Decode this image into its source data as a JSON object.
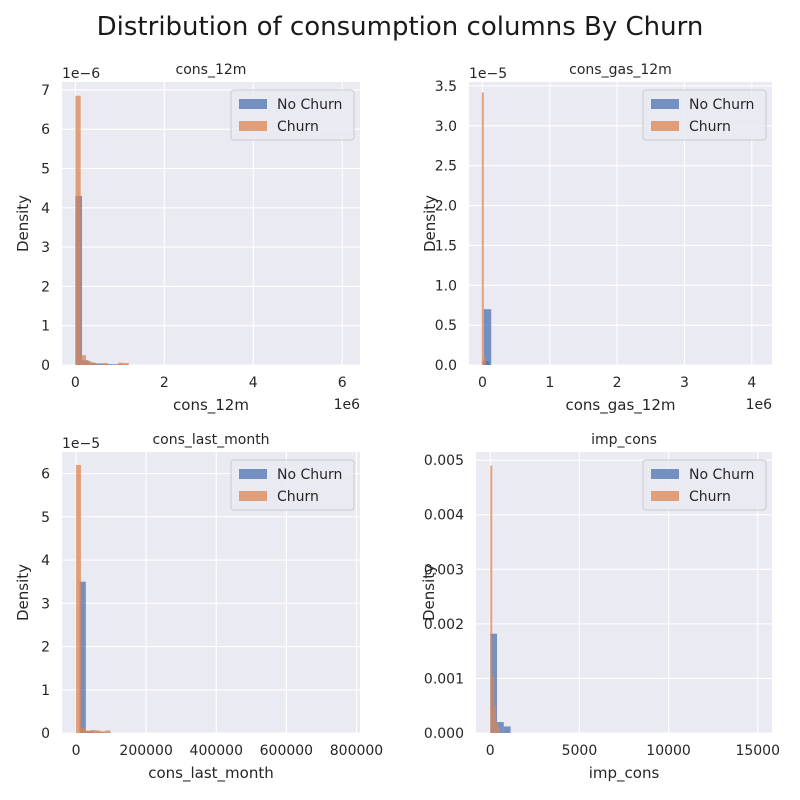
{
  "figure": {
    "title": "Distribution of consumption columns By Churn",
    "background": "#ffffff",
    "axes_face": "#eaeaf2",
    "grid_color": "#ffffff"
  },
  "colors": {
    "No Churn": "#4c72b0",
    "Churn": "#dd8452"
  },
  "chart_data": [
    {
      "type": "bar",
      "title": "cons_12m",
      "xlabel": "cons_12m",
      "ylabel": "Density",
      "x_offset_label": "1e6",
      "y_offset_label": "1e−6",
      "xlim": [
        -0.3,
        6.4
      ],
      "ylim": [
        0,
        7.2
      ],
      "xticks": [
        0,
        2,
        4,
        6
      ],
      "xtick_labels": [
        "0",
        "2",
        "4",
        "6"
      ],
      "yticks": [
        0,
        1,
        2,
        3,
        4,
        5,
        6,
        7
      ],
      "ytick_labels": [
        "0",
        "1",
        "2",
        "3",
        "4",
        "5",
        "6",
        "7"
      ],
      "grid": true,
      "legend": {
        "placement": "top-right",
        "entries": [
          "No Churn",
          "Churn"
        ]
      },
      "series": [
        {
          "name": "No Churn",
          "bins": [
            [
              0.0,
              0.15,
              4.3
            ],
            [
              0.15,
              0.3,
              0.12
            ],
            [
              0.3,
              0.45,
              0.06
            ],
            [
              0.45,
              0.6,
              0.04
            ],
            [
              0.6,
              0.75,
              0.03
            ],
            [
              0.75,
              0.9,
              0.02
            ],
            [
              0.9,
              1.05,
              0.02
            ],
            [
              1.05,
              1.2,
              0.01
            ]
          ]
        },
        {
          "name": "Churn",
          "bins": [
            [
              0.0,
              0.12,
              6.85
            ],
            [
              0.12,
              0.24,
              0.25
            ],
            [
              0.24,
              0.36,
              0.1
            ],
            [
              0.36,
              0.48,
              0.05
            ],
            [
              0.6,
              0.72,
              0.05
            ],
            [
              0.96,
              1.08,
              0.06
            ],
            [
              1.08,
              1.2,
              0.05
            ]
          ]
        }
      ]
    },
    {
      "type": "bar",
      "title": "cons_gas_12m",
      "xlabel": "cons_gas_12m",
      "ylabel": "Density",
      "x_offset_label": "1e6",
      "y_offset_label": "1e−5",
      "xlim": [
        -0.2,
        4.3
      ],
      "ylim": [
        0,
        3.55
      ],
      "xticks": [
        0,
        1,
        2,
        3,
        4
      ],
      "xtick_labels": [
        "0",
        "1",
        "2",
        "3",
        "4"
      ],
      "yticks": [
        0,
        0.5,
        1,
        1.5,
        2,
        2.5,
        3,
        3.5
      ],
      "ytick_labels": [
        "0.0",
        "0.5",
        "1.0",
        "1.5",
        "2.0",
        "2.5",
        "3.0",
        "3.5"
      ],
      "grid": true,
      "legend": {
        "placement": "top-right",
        "entries": [
          "No Churn",
          "Churn"
        ]
      },
      "series": [
        {
          "name": "No Churn",
          "bins": [
            [
              0.0,
              0.1,
              0.05
            ],
            [
              0.02,
              0.13,
              0.7
            ]
          ]
        },
        {
          "name": "Churn",
          "bins": [
            [
              -0.01,
              0.02,
              3.42
            ],
            [
              0.02,
              0.05,
              0.1
            ]
          ]
        }
      ]
    },
    {
      "type": "bar",
      "title": "cons_last_month",
      "xlabel": "cons_last_month",
      "ylabel": "Density",
      "x_offset_label": "",
      "y_offset_label": "1e−5",
      "xlim": [
        -40000,
        810000
      ],
      "ylim": [
        0,
        6.5
      ],
      "xticks": [
        0,
        200000,
        400000,
        600000,
        800000
      ],
      "xtick_labels": [
        "0",
        "200000",
        "400000",
        "600000",
        "800000"
      ],
      "yticks": [
        0,
        1,
        2,
        3,
        4,
        5,
        6
      ],
      "ytick_labels": [
        "0",
        "1",
        "2",
        "3",
        "4",
        "5",
        "6"
      ],
      "grid": true,
      "legend": {
        "placement": "top-right",
        "entries": [
          "No Churn",
          "Churn"
        ]
      },
      "series": [
        {
          "name": "No Churn",
          "bins": [
            [
              10000,
              28000,
              3.5
            ],
            [
              28000,
              46000,
              0.05
            ],
            [
              46000,
              64000,
              0.03
            ],
            [
              64000,
              82000,
              0.02
            ],
            [
              82000,
              100000,
              0.01
            ]
          ]
        },
        {
          "name": "Churn",
          "bins": [
            [
              0,
              14000,
              6.2
            ],
            [
              14000,
              28000,
              0.12
            ],
            [
              28000,
              42000,
              0.05
            ],
            [
              42000,
              56000,
              0.07
            ],
            [
              56000,
              70000,
              0.06
            ],
            [
              70000,
              84000,
              0.04
            ],
            [
              84000,
              98000,
              0.06
            ]
          ]
        }
      ]
    },
    {
      "type": "bar",
      "title": "imp_cons",
      "xlabel": "imp_cons",
      "ylabel": "Density",
      "x_offset_label": "",
      "y_offset_label": "",
      "xlim": [
        -800,
        15800
      ],
      "ylim": [
        0,
        0.00515
      ],
      "xticks": [
        0,
        5000,
        10000,
        15000
      ],
      "xtick_labels": [
        "0",
        "5000",
        "10000",
        "15000"
      ],
      "yticks": [
        0,
        0.001,
        0.002,
        0.003,
        0.004,
        0.005
      ],
      "ytick_labels": [
        "0.000",
        "0.001",
        "0.002",
        "0.003",
        "0.004",
        "0.005"
      ],
      "grid": true,
      "legend": {
        "placement": "top-right",
        "entries": [
          "No Churn",
          "Churn"
        ]
      },
      "series": [
        {
          "name": "No Churn",
          "bins": [
            [
              0,
              380,
              0.00182
            ],
            [
              380,
              760,
              0.0002
            ],
            [
              760,
              1140,
              0.00012
            ]
          ]
        },
        {
          "name": "Churn",
          "bins": [
            [
              0,
              110,
              0.0049
            ],
            [
              110,
              220,
              0.00105
            ],
            [
              220,
              330,
              0.0005
            ],
            [
              330,
              440,
              0.0002
            ],
            [
              440,
              550,
              0.0001
            ]
          ]
        }
      ]
    }
  ]
}
